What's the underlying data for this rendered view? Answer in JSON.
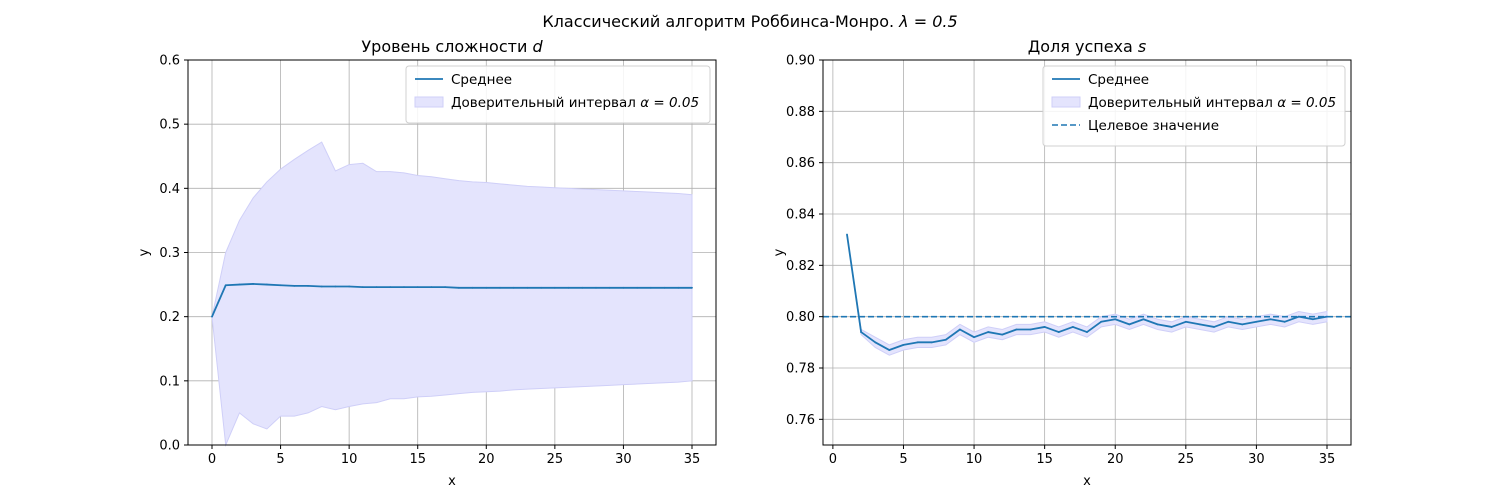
{
  "figure": {
    "suptitle_prefix": "Классический алгоритм Роббинса-Монро. ",
    "suptitle_lambda": "λ = 0.5"
  },
  "colors": {
    "mean": "#1f77b4",
    "band_fill": "#e4e4fd",
    "band_edge": "#cfcff8",
    "target": "#1f77b4",
    "grid": "#b0b0b0"
  },
  "chart_data": [
    {
      "type": "line",
      "title_prefix": "Уровень сложности ",
      "title_var": "d",
      "xlabel": "x",
      "ylabel": "y",
      "xlim": [
        -1.75,
        36.75
      ],
      "ylim": [
        0.0,
        0.6
      ],
      "xticks": [
        0,
        5,
        10,
        15,
        20,
        25,
        30,
        35
      ],
      "yticks": [
        0.0,
        0.1,
        0.2,
        0.3,
        0.4,
        0.5,
        0.6
      ],
      "ytick_labels": [
        "0.0",
        "0.1",
        "0.2",
        "0.3",
        "0.4",
        "0.5",
        "0.6"
      ],
      "grid": true,
      "legend_position": "top-right",
      "legend": [
        {
          "kind": "line",
          "text": "Среднее"
        },
        {
          "kind": "band",
          "text": "Доверительный интервал ",
          "math": "α = 0.05"
        }
      ],
      "x": [
        0,
        1,
        2,
        3,
        4,
        5,
        6,
        7,
        8,
        9,
        10,
        11,
        12,
        13,
        14,
        15,
        16,
        17,
        18,
        19,
        20,
        21,
        22,
        23,
        24,
        25,
        26,
        27,
        28,
        29,
        30,
        31,
        32,
        33,
        34,
        35
      ],
      "mean": [
        0.2,
        0.249,
        0.25,
        0.251,
        0.25,
        0.249,
        0.248,
        0.248,
        0.247,
        0.247,
        0.247,
        0.246,
        0.246,
        0.246,
        0.246,
        0.246,
        0.246,
        0.246,
        0.245,
        0.245,
        0.245,
        0.245,
        0.245,
        0.245,
        0.245,
        0.245,
        0.245,
        0.245,
        0.245,
        0.245,
        0.245,
        0.245,
        0.245,
        0.245,
        0.245,
        0.245
      ],
      "lower": [
        0.2,
        0.0,
        0.05,
        0.033,
        0.025,
        0.045,
        0.045,
        0.05,
        0.06,
        0.055,
        0.06,
        0.064,
        0.066,
        0.072,
        0.072,
        0.075,
        0.076,
        0.078,
        0.08,
        0.082,
        0.083,
        0.084,
        0.086,
        0.087,
        0.088,
        0.089,
        0.09,
        0.091,
        0.092,
        0.093,
        0.094,
        0.095,
        0.096,
        0.097,
        0.098,
        0.1
      ],
      "upper": [
        0.2,
        0.3,
        0.35,
        0.385,
        0.41,
        0.43,
        0.445,
        0.459,
        0.472,
        0.427,
        0.437,
        0.439,
        0.426,
        0.426,
        0.424,
        0.42,
        0.418,
        0.415,
        0.412,
        0.41,
        0.409,
        0.407,
        0.405,
        0.403,
        0.402,
        0.401,
        0.4,
        0.399,
        0.398,
        0.397,
        0.396,
        0.395,
        0.394,
        0.393,
        0.392,
        0.39
      ]
    },
    {
      "type": "line",
      "title_prefix": "Доля успеха ",
      "title_var": "s",
      "xlabel": "x",
      "ylabel": "y",
      "xlim": [
        -0.7,
        36.7
      ],
      "ylim": [
        0.75,
        0.9
      ],
      "xticks": [
        0,
        5,
        10,
        15,
        20,
        25,
        30,
        35
      ],
      "yticks": [
        0.76,
        0.78,
        0.8,
        0.82,
        0.84,
        0.86,
        0.88,
        0.9
      ],
      "ytick_labels": [
        "0.76",
        "0.78",
        "0.80",
        "0.82",
        "0.84",
        "0.86",
        "0.88",
        "0.90"
      ],
      "grid": true,
      "legend_position": "top-right",
      "legend": [
        {
          "kind": "line",
          "text": "Среднее"
        },
        {
          "kind": "band",
          "text": "Доверительный интервал ",
          "math": "α = 0.05"
        },
        {
          "kind": "dashed",
          "text": "Целевое значение"
        }
      ],
      "target": 0.8,
      "x": [
        1,
        2,
        3,
        4,
        5,
        6,
        7,
        8,
        9,
        10,
        11,
        12,
        13,
        14,
        15,
        16,
        17,
        18,
        19,
        20,
        21,
        22,
        23,
        24,
        25,
        26,
        27,
        28,
        29,
        30,
        31,
        32,
        33,
        34,
        35
      ],
      "mean": [
        0.832,
        0.794,
        0.79,
        0.787,
        0.789,
        0.79,
        0.79,
        0.791,
        0.795,
        0.792,
        0.794,
        0.793,
        0.795,
        0.795,
        0.796,
        0.794,
        0.796,
        0.794,
        0.798,
        0.799,
        0.797,
        0.799,
        0.797,
        0.796,
        0.798,
        0.797,
        0.796,
        0.798,
        0.797,
        0.798,
        0.799,
        0.798,
        0.8,
        0.799,
        0.8
      ],
      "lower": [
        0.832,
        0.793,
        0.788,
        0.785,
        0.787,
        0.788,
        0.788,
        0.789,
        0.793,
        0.79,
        0.792,
        0.791,
        0.793,
        0.793,
        0.794,
        0.792,
        0.794,
        0.792,
        0.796,
        0.797,
        0.795,
        0.797,
        0.795,
        0.794,
        0.796,
        0.795,
        0.794,
        0.796,
        0.795,
        0.796,
        0.797,
        0.796,
        0.798,
        0.797,
        0.798
      ],
      "upper": [
        0.832,
        0.795,
        0.792,
        0.789,
        0.791,
        0.792,
        0.792,
        0.793,
        0.797,
        0.794,
        0.796,
        0.795,
        0.797,
        0.797,
        0.798,
        0.796,
        0.798,
        0.796,
        0.8,
        0.801,
        0.799,
        0.801,
        0.799,
        0.798,
        0.8,
        0.799,
        0.798,
        0.8,
        0.799,
        0.8,
        0.801,
        0.8,
        0.802,
        0.801,
        0.802
      ]
    }
  ]
}
